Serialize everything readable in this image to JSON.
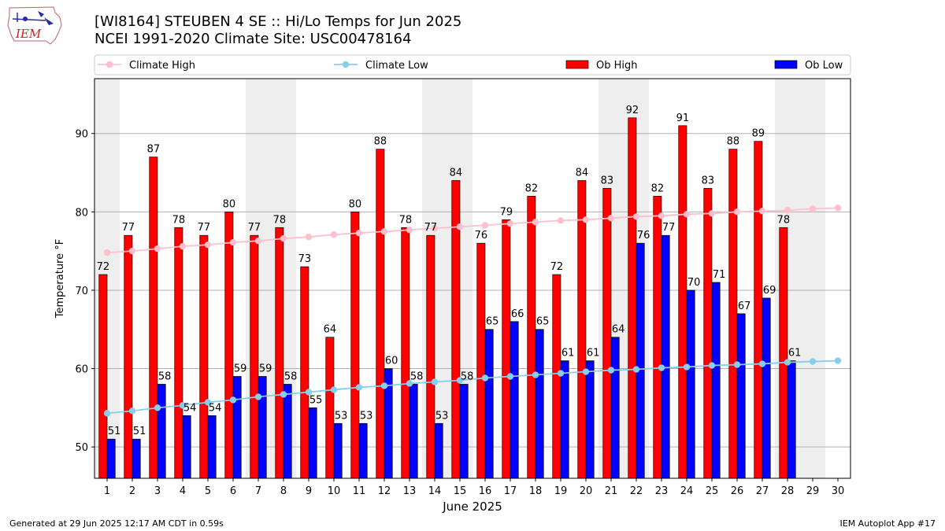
{
  "header": {
    "title_line1": "[WI8164] STEUBEN 4 SE :: Hi/Lo Temps for Jun 2025",
    "title_line2": "NCEI 1991-2020 Climate Site: USC00478164",
    "logo_text": "IEM"
  },
  "footer": {
    "generated": "Generated at 29 Jun 2025 12:17 AM CDT in 0.59s",
    "app": "IEM Autoplot App #17"
  },
  "colors": {
    "ob_high": "#ff0000",
    "ob_low": "#0000ff",
    "climate_high": "#ffc0cb",
    "climate_low": "#87ceeb",
    "weekend_band": "#eeeeee",
    "grid": "#b0b0b0"
  },
  "chart_data": {
    "type": "bar",
    "xlabel": "June 2025",
    "ylabel": "Temperature °F",
    "ylim": [
      46,
      97
    ],
    "yticks": [
      50,
      60,
      70,
      80,
      90
    ],
    "xlim": [
      0.5,
      30.5
    ],
    "grid": "horizontal",
    "legend_placement": "top",
    "days": [
      1,
      2,
      3,
      4,
      5,
      6,
      7,
      8,
      9,
      10,
      11,
      12,
      13,
      14,
      15,
      16,
      17,
      18,
      19,
      20,
      21,
      22,
      23,
      24,
      25,
      26,
      27,
      28,
      29,
      30
    ],
    "weekend_days": [
      1,
      7,
      8,
      14,
      15,
      21,
      22,
      28,
      29
    ],
    "series": [
      {
        "name": "Climate High",
        "kind": "line",
        "color": "#ffc0cb",
        "values": [
          74.8,
          75.0,
          75.3,
          75.6,
          75.8,
          76.1,
          76.3,
          76.6,
          76.8,
          77.1,
          77.3,
          77.5,
          77.7,
          77.9,
          78.1,
          78.3,
          78.5,
          78.7,
          78.9,
          79.0,
          79.2,
          79.4,
          79.5,
          79.7,
          79.8,
          80.0,
          80.1,
          80.2,
          80.4,
          80.5
        ]
      },
      {
        "name": "Climate Low",
        "kind": "line",
        "color": "#87ceeb",
        "values": [
          54.3,
          54.6,
          55.0,
          55.3,
          55.7,
          56.0,
          56.4,
          56.7,
          57.0,
          57.3,
          57.6,
          57.8,
          58.1,
          58.3,
          58.5,
          58.8,
          59.0,
          59.2,
          59.4,
          59.6,
          59.8,
          59.9,
          60.1,
          60.2,
          60.4,
          60.5,
          60.6,
          60.8,
          60.9,
          61.0
        ]
      },
      {
        "name": "Ob High",
        "kind": "bar",
        "color": "#ff0000",
        "values": [
          72,
          77,
          87,
          78,
          77,
          80,
          77,
          78,
          73,
          64,
          80,
          88,
          78,
          77,
          84,
          76,
          79,
          82,
          72,
          84,
          83,
          92,
          82,
          91,
          83,
          88,
          89,
          78
        ]
      },
      {
        "name": "Ob Low",
        "kind": "bar",
        "color": "#0000ff",
        "values": [
          51,
          51,
          58,
          54,
          54,
          59,
          59,
          58,
          55,
          53,
          53,
          60,
          58,
          53,
          58,
          65,
          66,
          65,
          61,
          61,
          64,
          76,
          77,
          70,
          71,
          67,
          69,
          61
        ]
      }
    ]
  }
}
